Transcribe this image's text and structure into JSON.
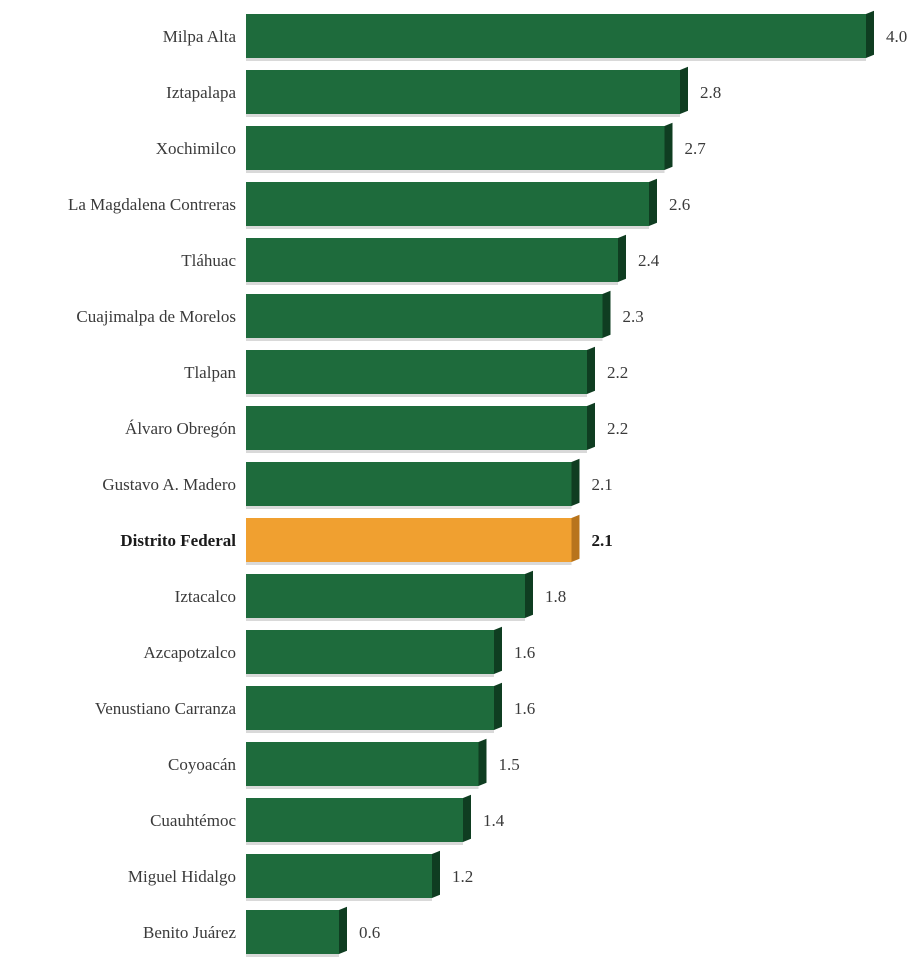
{
  "chart_data": {
    "type": "bar",
    "orientation": "horizontal",
    "title": "",
    "xlabel": "",
    "ylabel": "",
    "xlim": [
      0,
      4.0
    ],
    "grid": false,
    "categories": [
      "Milpa Alta",
      "Iztapalapa",
      "Xochimilco",
      "La Magdalena Contreras",
      "Tláhuac",
      "Cuajimalpa de Morelos",
      "Tlalpan",
      "Álvaro Obregón",
      "Gustavo A. Madero",
      "Distrito Federal",
      "Iztacalco",
      "Azcapotzalco",
      "Venustiano Carranza",
      "Coyoacán",
      "Cuauhtémoc",
      "Miguel Hidalgo",
      "Benito Juárez"
    ],
    "values": [
      4.0,
      2.8,
      2.7,
      2.6,
      2.4,
      2.3,
      2.2,
      2.2,
      2.1,
      2.1,
      1.8,
      1.6,
      1.6,
      1.5,
      1.4,
      1.2,
      0.6
    ],
    "value_labels": [
      "4.0",
      "2.8",
      "2.7",
      "2.6",
      "2.4",
      "2.3",
      "2.2",
      "2.2",
      "2.1",
      "2.1",
      "1.8",
      "1.6",
      "1.6",
      "1.5",
      "1.4",
      "1.2",
      "0.6"
    ],
    "highlight_category": "Distrito Federal",
    "colors": {
      "bar": "#1e6b3c",
      "bar_side": "#0f3d21",
      "highlight": "#f0a030",
      "highlight_side": "#b8741c"
    }
  }
}
